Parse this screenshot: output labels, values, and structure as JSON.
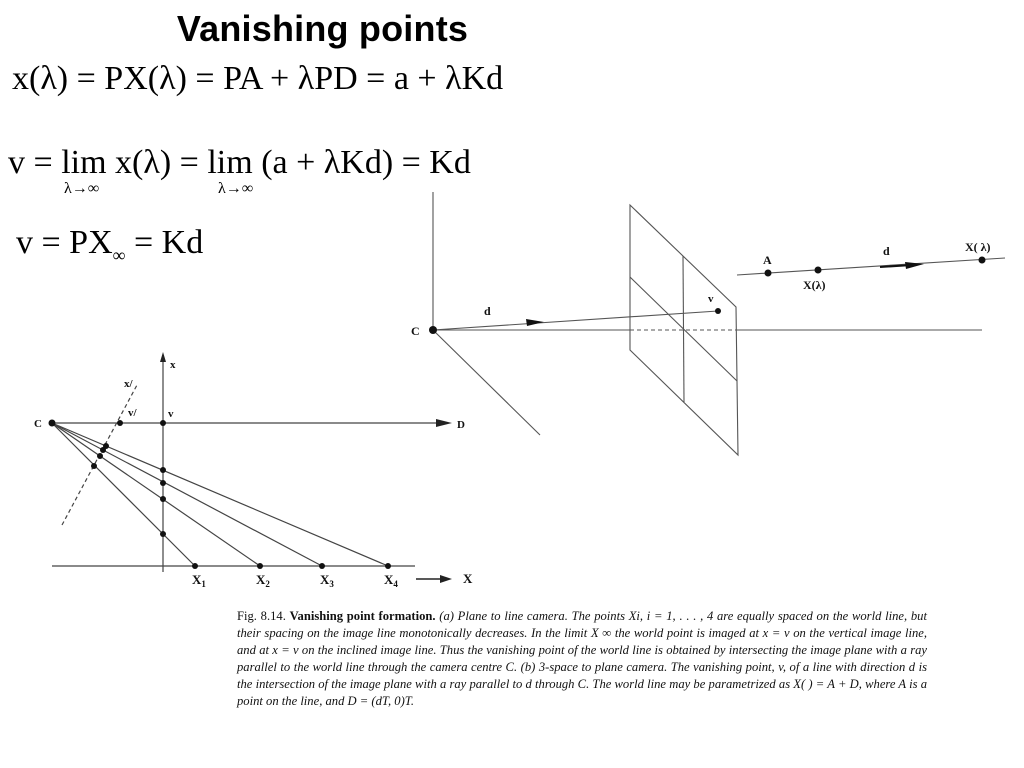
{
  "title": "Vanishing points",
  "equations": {
    "eq1": "x(λ) = PX(λ) = PA + λPD = a + λKd",
    "eq2_prefix": "v =",
    "eq2_lim1": "lim",
    "eq2_mid": "x(λ) =",
    "eq2_lim2": "lim",
    "eq2_tail": "(a + λKd) = Kd",
    "eq2_sub": "λ→∞",
    "eq3_main": "v = PX",
    "eq3_sub": "∞",
    "eq3_tail": " = Kd"
  },
  "diagram_a": {
    "labels": {
      "c": "C",
      "x_axis_top": "x",
      "x_prime": "x/",
      "v_prime": "v/",
      "v": "v",
      "d_label": "D",
      "x1": "X",
      "x1_sub": "1",
      "x2": "X",
      "x2_sub": "2",
      "x3": "X",
      "x3_sub": "3",
      "x4": "X",
      "x4_sub": "4",
      "x_world": "X"
    }
  },
  "diagram_b": {
    "labels": {
      "c": "C",
      "d_ray": "d",
      "v": "v",
      "a": "A",
      "x_lambda": "X(λ)",
      "d_line": "d",
      "x_lambda2": "X( λ)"
    }
  },
  "caption": {
    "fig": "Fig. 8.14.",
    "bold_title": "Vanishing point formation.",
    "text": "(a) Plane to line camera. The points Xi, i = 1, . . . , 4 are equally spaced on the world line, but their spacing on the image line monotonically decreases. In the limit X      ∞ the world point is imaged at x = v on the vertical image line, and at x = v on the inclined image line. Thus the vanishing point of the world line is obtained by intersecting the image plane with a ray parallel to the world line through the camera centre C. (b) 3-space to plane camera. The vanishing point, v, of a line with direction d is the intersection of the image plane with a ray parallel to d through C. The world line may be parametrized as X(  ) = A +   D, where A is a point on the line, and D = (dT, 0)T."
  }
}
